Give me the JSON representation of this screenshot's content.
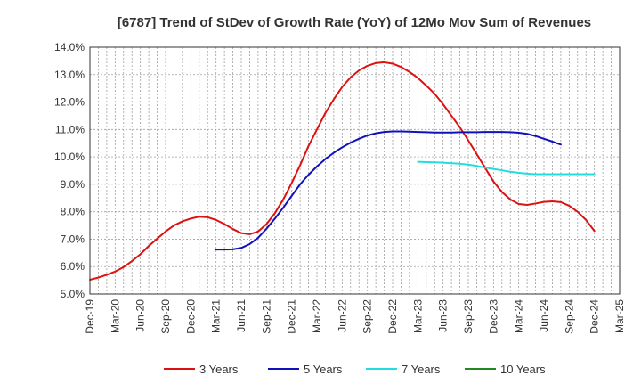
{
  "chart_data": {
    "type": "line",
    "title": "[6787]  Trend of StDev of Growth Rate (YoY) of 12Mo Mov Sum of Revenues",
    "xlabel": "",
    "ylabel": "",
    "ylim": [
      5.0,
      14.0
    ],
    "y_ticks": [
      "5.0%",
      "6.0%",
      "7.0%",
      "8.0%",
      "9.0%",
      "10.0%",
      "11.0%",
      "12.0%",
      "13.0%",
      "14.0%"
    ],
    "y_tick_values": [
      5,
      6,
      7,
      8,
      9,
      10,
      11,
      12,
      13,
      14
    ],
    "x_ticks": [
      "Dec-19",
      "Mar-20",
      "Jun-20",
      "Sep-20",
      "Dec-20",
      "Mar-21",
      "Jun-21",
      "Sep-21",
      "Dec-21",
      "Mar-22",
      "Jun-22",
      "Sep-22",
      "Dec-22",
      "Mar-23",
      "Jun-23",
      "Sep-23",
      "Dec-23",
      "Mar-24",
      "Jun-24",
      "Sep-24",
      "Dec-24",
      "Mar-25"
    ],
    "x_start_month": "Dec-19",
    "x_total_months": 63,
    "grid": true,
    "legend_position": "bottom",
    "series": [
      {
        "name": "3 Years",
        "color": "#dd1111",
        "start_offset": 0,
        "values": [
          5.52,
          5.6,
          5.7,
          5.82,
          5.98,
          6.2,
          6.45,
          6.75,
          7.02,
          7.28,
          7.5,
          7.65,
          7.75,
          7.82,
          7.8,
          7.7,
          7.55,
          7.37,
          7.22,
          7.18,
          7.28,
          7.55,
          7.95,
          8.45,
          9.05,
          9.7,
          10.4,
          11.0,
          11.6,
          12.1,
          12.55,
          12.9,
          13.15,
          13.32,
          13.42,
          13.45,
          13.4,
          13.28,
          13.1,
          12.88,
          12.6,
          12.3,
          11.92,
          11.5,
          11.08,
          10.6,
          10.1,
          9.6,
          9.1,
          8.72,
          8.45,
          8.28,
          8.25,
          8.3,
          8.36,
          8.38,
          8.35,
          8.22,
          8.0,
          7.7,
          7.3
        ]
      },
      {
        "name": "5 Years",
        "color": "#1111bb",
        "start_offset": 15,
        "values": [
          6.62,
          6.62,
          6.63,
          6.68,
          6.82,
          7.05,
          7.38,
          7.75,
          8.15,
          8.58,
          9.0,
          9.35,
          9.65,
          9.92,
          10.15,
          10.35,
          10.52,
          10.66,
          10.78,
          10.86,
          10.91,
          10.93,
          10.93,
          10.92,
          10.91,
          10.9,
          10.89,
          10.89,
          10.89,
          10.9,
          10.9,
          10.9,
          10.91,
          10.91,
          10.91,
          10.9,
          10.88,
          10.84,
          10.76,
          10.66,
          10.56,
          10.45
        ]
      },
      {
        "name": "7 Years",
        "color": "#22dddd",
        "start_offset": 39,
        "values": [
          9.82,
          9.81,
          9.8,
          9.79,
          9.77,
          9.75,
          9.72,
          9.67,
          9.61,
          9.56,
          9.51,
          9.46,
          9.42,
          9.39,
          9.37,
          9.37,
          9.37,
          9.37,
          9.37,
          9.37,
          9.37,
          9.37
        ]
      },
      {
        "name": "10 Years",
        "color": "#228822",
        "start_offset": 0,
        "values": []
      }
    ]
  }
}
